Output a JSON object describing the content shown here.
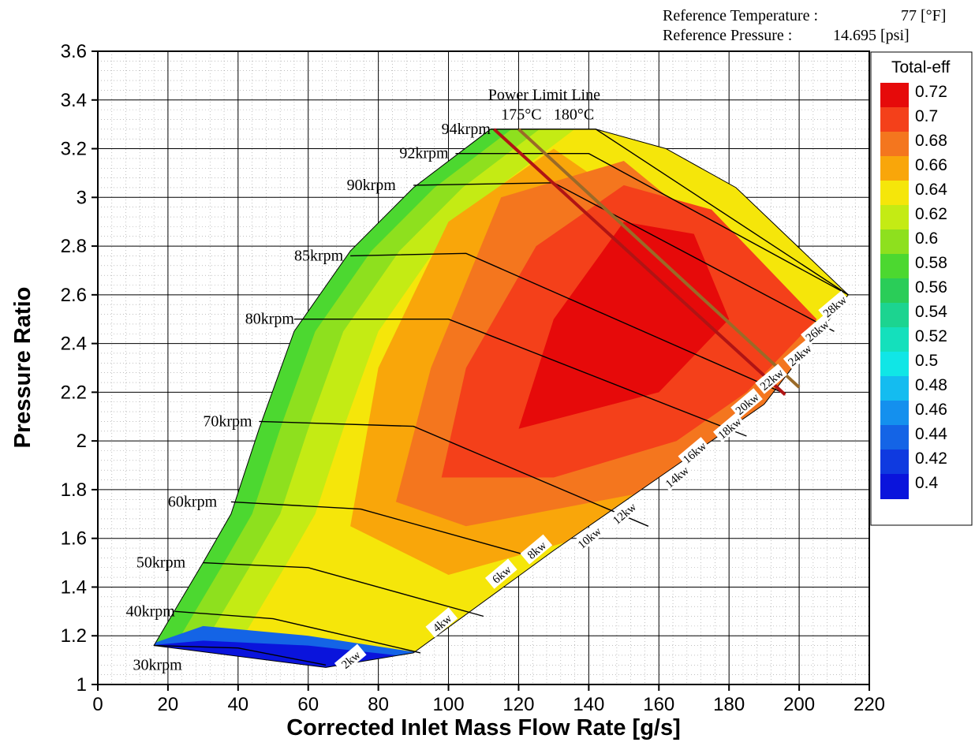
{
  "chart_data": {
    "type": "contour",
    "xlabel": "Corrected Inlet Mass Flow Rate [g/s]",
    "ylabel": "Pressure Ratio",
    "xlim": [
      0,
      220
    ],
    "ylim": [
      1,
      3.6
    ],
    "xticks": [
      0,
      20,
      40,
      60,
      80,
      100,
      120,
      140,
      160,
      180,
      200,
      220
    ],
    "yticks": [
      1,
      1.2,
      1.4,
      1.6,
      1.8,
      2,
      2.2,
      2.4,
      2.6,
      2.8,
      3,
      3.2,
      3.4,
      3.6
    ],
    "grid": true,
    "header": {
      "ref_temp_label": "Reference Temperature :",
      "ref_temp_value": "77 [°F]",
      "ref_pressure_label": "Reference Pressure :",
      "ref_pressure_value": "14.695 [psi]"
    },
    "legend": {
      "title": "Total-eff",
      "placement": "right",
      "levels": [
        0.72,
        0.7,
        0.68,
        0.66,
        0.64,
        0.62,
        0.6,
        0.58,
        0.56,
        0.54,
        0.52,
        0.5,
        0.48,
        0.46,
        0.44,
        0.42,
        0.4
      ],
      "colors": [
        "#e60a0a",
        "#f4401a",
        "#f4761e",
        "#f9a60a",
        "#f5e60a",
        "#c4eb14",
        "#8ee01e",
        "#4cd830",
        "#2acd58",
        "#1cd490",
        "#14e0bc",
        "#10e6e6",
        "#14bcf0",
        "#1490ee",
        "#1464e6",
        "#0f3ae0",
        "#0a14dc"
      ]
    },
    "surge_line": [
      [
        16,
        1.16
      ],
      [
        30,
        1.5
      ],
      [
        38,
        1.7
      ],
      [
        46,
        2.05
      ],
      [
        56,
        2.45
      ],
      [
        72,
        2.78
      ],
      [
        90,
        3.04
      ],
      [
        112,
        3.28
      ]
    ],
    "choke_line": [
      [
        65,
        1.07
      ],
      [
        90,
        1.13
      ],
      [
        130,
        1.55
      ],
      [
        165,
        1.9
      ],
      [
        190,
        2.15
      ],
      [
        214,
        2.6
      ]
    ],
    "top_boundary": [
      [
        112,
        3.28
      ],
      [
        142,
        3.28
      ],
      [
        162,
        3.2
      ],
      [
        182,
        3.04
      ],
      [
        214,
        2.6
      ]
    ],
    "efficiency_regions": [
      {
        "level": 0.66,
        "points": [
          [
            72,
            1.65
          ],
          [
            80,
            2.3
          ],
          [
            100,
            2.9
          ],
          [
            130,
            3.2
          ],
          [
            200,
            2.5
          ],
          [
            190,
            2.0
          ],
          [
            150,
            1.65
          ],
          [
            100,
            1.45
          ]
        ]
      },
      {
        "level": 0.68,
        "points": [
          [
            85,
            1.75
          ],
          [
            95,
            2.3
          ],
          [
            115,
            3.0
          ],
          [
            150,
            3.15
          ],
          [
            205,
            2.5
          ],
          [
            190,
            2.05
          ],
          [
            160,
            1.8
          ],
          [
            105,
            1.65
          ]
        ]
      },
      {
        "level": 0.7,
        "points": [
          [
            98,
            1.85
          ],
          [
            105,
            2.3
          ],
          [
            125,
            2.8
          ],
          [
            150,
            3.05
          ],
          [
            175,
            2.95
          ],
          [
            205,
            2.5
          ],
          [
            185,
            2.2
          ],
          [
            165,
            2.0
          ],
          [
            130,
            1.85
          ]
        ]
      },
      {
        "level": 0.72,
        "points": [
          [
            120,
            2.05
          ],
          [
            130,
            2.5
          ],
          [
            150,
            2.9
          ],
          [
            170,
            2.85
          ],
          [
            180,
            2.5
          ],
          [
            160,
            2.2
          ]
        ]
      }
    ],
    "speed_lines": [
      {
        "label": "30krpm",
        "label_at": [
          24,
          1.08
        ],
        "points": [
          [
            16,
            1.16
          ],
          [
            40,
            1.15
          ],
          [
            65,
            1.08
          ]
        ]
      },
      {
        "label": "40krpm",
        "label_at": [
          22,
          1.3
        ],
        "points": [
          [
            22,
            1.3
          ],
          [
            50,
            1.27
          ],
          [
            92,
            1.13
          ]
        ]
      },
      {
        "label": "50krpm",
        "label_at": [
          25,
          1.5
        ],
        "points": [
          [
            30,
            1.5
          ],
          [
            60,
            1.48
          ],
          [
            110,
            1.28
          ]
        ]
      },
      {
        "label": "60krpm",
        "label_at": [
          34,
          1.75
        ],
        "points": [
          [
            38,
            1.75
          ],
          [
            75,
            1.72
          ],
          [
            125,
            1.52
          ]
        ]
      },
      {
        "label": "70krpm",
        "label_at": [
          44,
          2.08
        ],
        "points": [
          [
            46,
            2.08
          ],
          [
            90,
            2.06
          ],
          [
            157,
            1.65
          ]
        ]
      },
      {
        "label": "80krpm",
        "label_at": [
          56,
          2.5
        ],
        "points": [
          [
            56,
            2.5
          ],
          [
            100,
            2.5
          ],
          [
            185,
            2.02
          ]
        ]
      },
      {
        "label": "85krpm",
        "label_at": [
          70,
          2.76
        ],
        "points": [
          [
            72,
            2.76
          ],
          [
            105,
            2.77
          ],
          [
            195,
            2.2
          ]
        ]
      },
      {
        "label": "90krpm",
        "label_at": [
          85,
          3.05
        ],
        "points": [
          [
            90,
            3.05
          ],
          [
            130,
            3.06
          ],
          [
            210,
            2.45
          ]
        ]
      },
      {
        "label": "92krpm",
        "label_at": [
          100,
          3.18
        ],
        "points": [
          [
            102,
            3.18
          ],
          [
            140,
            3.18
          ],
          [
            214,
            2.6
          ]
        ]
      },
      {
        "label": "94krpm",
        "label_at": [
          112,
          3.28
        ],
        "points": [
          [
            112,
            3.28
          ],
          [
            142,
            3.28
          ],
          [
            214,
            2.6
          ]
        ]
      }
    ],
    "power_lines": [
      {
        "label": "2kw",
        "label_at": [
          72,
          1.1
        ]
      },
      {
        "label": "4kw",
        "label_at": [
          98,
          1.25
        ]
      },
      {
        "label": "6kw",
        "label_at": [
          115,
          1.45
        ]
      },
      {
        "label": "8kw",
        "label_at": [
          125,
          1.55
        ]
      },
      {
        "label": "10kw",
        "label_at": [
          140,
          1.6
        ]
      },
      {
        "label": "12kw",
        "label_at": [
          150,
          1.7
        ]
      },
      {
        "label": "14kw",
        "label_at": [
          165,
          1.85
        ]
      },
      {
        "label": "16kw",
        "label_at": [
          170,
          1.95
        ]
      },
      {
        "label": "18kw",
        "label_at": [
          180,
          2.05
        ]
      },
      {
        "label": "20kw",
        "label_at": [
          185,
          2.15
        ]
      },
      {
        "label": "22kw",
        "label_at": [
          192,
          2.25
        ]
      },
      {
        "label": "24kw",
        "label_at": [
          200,
          2.35
        ]
      },
      {
        "label": "26kw",
        "label_at": [
          205,
          2.45
        ]
      },
      {
        "label": "28kw",
        "label_at": [
          210,
          2.55
        ]
      }
    ],
    "power_limit": {
      "title": "Power Limit Line",
      "title_at": [
        112,
        3.42
      ],
      "lines": [
        {
          "label": "175°C",
          "label_at": [
            115,
            3.34
          ],
          "color": "#b01414",
          "points": [
            [
              113,
              3.28
            ],
            [
              196,
              2.19
            ]
          ]
        },
        {
          "label": "180°C",
          "label_at": [
            130,
            3.34
          ],
          "color": "#9a6a28",
          "points": [
            [
              120,
              3.28
            ],
            [
              200,
              2.22
            ]
          ]
        }
      ]
    }
  }
}
